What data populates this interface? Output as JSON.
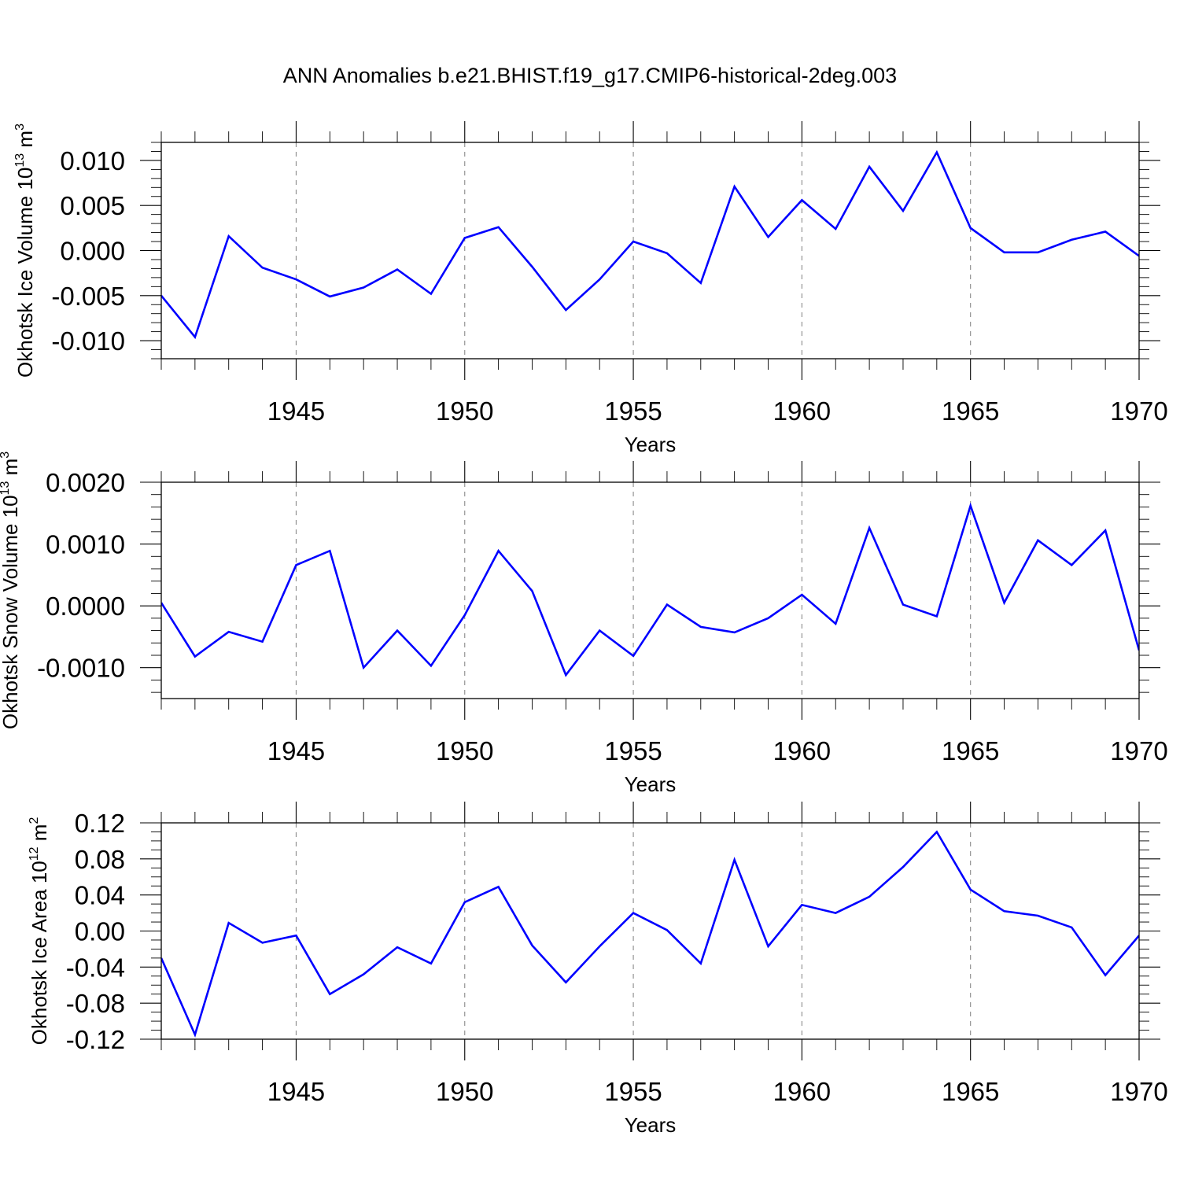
{
  "title": "ANN Anomalies b.e21.BHIST.f19_g17.CMIP6-historical-2deg.003",
  "line_color": "#0000ff",
  "chart_data": [
    {
      "type": "line",
      "xlabel": "Years",
      "ylabel": {
        "main": "Okhotsk Ice Volume 10",
        "exp": "13",
        "unit": " m",
        "unit_exp": "3"
      },
      "xlim": [
        1941,
        1970
      ],
      "ylim": [
        -0.012,
        0.012
      ],
      "yticks": [
        -0.01,
        -0.005,
        0.0,
        0.005,
        0.01
      ],
      "yminor_step": 0.001,
      "ytick_labels": [
        "-0.010",
        "-0.005",
        "0.000",
        "0.005",
        "0.010"
      ],
      "xticks": [
        1945,
        1950,
        1955,
        1960,
        1965,
        1970
      ],
      "xtick_labels": [
        "1945",
        "1950",
        "1955",
        "1960",
        "1965",
        "1970"
      ],
      "grid": "vertical dashed at major x ticks",
      "x": [
        1941,
        1942,
        1943,
        1944,
        1945,
        1946,
        1947,
        1948,
        1949,
        1950,
        1951,
        1952,
        1953,
        1954,
        1955,
        1956,
        1957,
        1958,
        1959,
        1960,
        1961,
        1962,
        1963,
        1964,
        1965,
        1966,
        1967,
        1968,
        1969,
        1970
      ],
      "values": [
        -0.005,
        -0.0096,
        0.0016,
        -0.0019,
        -0.0032,
        -0.0051,
        -0.0041,
        -0.0021,
        -0.0048,
        0.0014,
        0.0026,
        -0.0018,
        -0.0066,
        -0.0032,
        0.001,
        -0.0003,
        -0.0036,
        0.0071,
        0.0015,
        0.0056,
        0.0024,
        0.0093,
        0.0044,
        0.0109,
        0.0025,
        -0.0002,
        -0.0002,
        0.0012,
        0.0021,
        -0.0006
      ]
    },
    {
      "type": "line",
      "xlabel": "Years",
      "ylabel": {
        "main": "Okhotsk Snow Volume 10",
        "exp": "13",
        "unit": " m",
        "unit_exp": "3"
      },
      "xlim": [
        1941,
        1970
      ],
      "ylim": [
        -0.0015,
        0.002
      ],
      "yticks": [
        -0.001,
        0.0,
        0.001,
        0.002
      ],
      "yminor_step": 0.0002,
      "ytick_labels": [
        "-0.0010",
        "0.0000",
        "0.0010",
        "0.0020"
      ],
      "xticks": [
        1945,
        1950,
        1955,
        1960,
        1965,
        1970
      ],
      "xtick_labels": [
        "1945",
        "1950",
        "1955",
        "1960",
        "1965",
        "1970"
      ],
      "grid": "vertical dashed at major x ticks",
      "x": [
        1941,
        1942,
        1943,
        1944,
        1945,
        1946,
        1947,
        1948,
        1949,
        1950,
        1951,
        1952,
        1953,
        1954,
        1955,
        1956,
        1957,
        1958,
        1959,
        1960,
        1961,
        1962,
        1963,
        1964,
        1965,
        1966,
        1967,
        1968,
        1969,
        1970
      ],
      "values": [
        5e-05,
        -0.00082,
        -0.00042,
        -0.00058,
        0.00066,
        0.00089,
        -0.001,
        -0.0004,
        -0.00097,
        -0.00015,
        0.00089,
        0.00024,
        -0.00112,
        -0.0004,
        -0.00081,
        2e-05,
        -0.00034,
        -0.00043,
        -0.0002,
        0.00018,
        -0.00029,
        0.00126,
        2e-05,
        -0.00017,
        0.00162,
        5e-05,
        0.00106,
        0.00066,
        0.00122,
        -0.00072
      ]
    },
    {
      "type": "line",
      "xlabel": "Years",
      "ylabel": {
        "main": "Okhotsk Ice Area 10",
        "exp": "12",
        "unit": " m",
        "unit_exp": "2"
      },
      "xlim": [
        1941,
        1970
      ],
      "ylim": [
        -0.12,
        0.12
      ],
      "yticks": [
        -0.12,
        -0.08,
        -0.04,
        0.0,
        0.04,
        0.08,
        0.12
      ],
      "yminor_step": 0.01,
      "ytick_labels": [
        "-0.12",
        "-0.08",
        "-0.04",
        "0.00",
        "0.04",
        "0.08",
        "0.12"
      ],
      "xticks": [
        1945,
        1950,
        1955,
        1960,
        1965,
        1970
      ],
      "xtick_labels": [
        "1945",
        "1950",
        "1955",
        "1960",
        "1965",
        "1970"
      ],
      "grid": "vertical dashed at major x ticks",
      "x": [
        1941,
        1942,
        1943,
        1944,
        1945,
        1946,
        1947,
        1948,
        1949,
        1950,
        1951,
        1952,
        1953,
        1954,
        1955,
        1956,
        1957,
        1958,
        1959,
        1960,
        1961,
        1962,
        1963,
        1964,
        1965,
        1966,
        1967,
        1968,
        1969,
        1970
      ],
      "values": [
        -0.03,
        -0.115,
        0.009,
        -0.013,
        -0.005,
        -0.07,
        -0.048,
        -0.018,
        -0.036,
        0.032,
        0.049,
        -0.016,
        -0.057,
        -0.017,
        0.02,
        0.001,
        -0.036,
        0.079,
        -0.017,
        0.029,
        0.02,
        0.038,
        0.071,
        0.11,
        0.046,
        0.022,
        0.017,
        0.004,
        -0.049,
        -0.005
      ]
    }
  ]
}
